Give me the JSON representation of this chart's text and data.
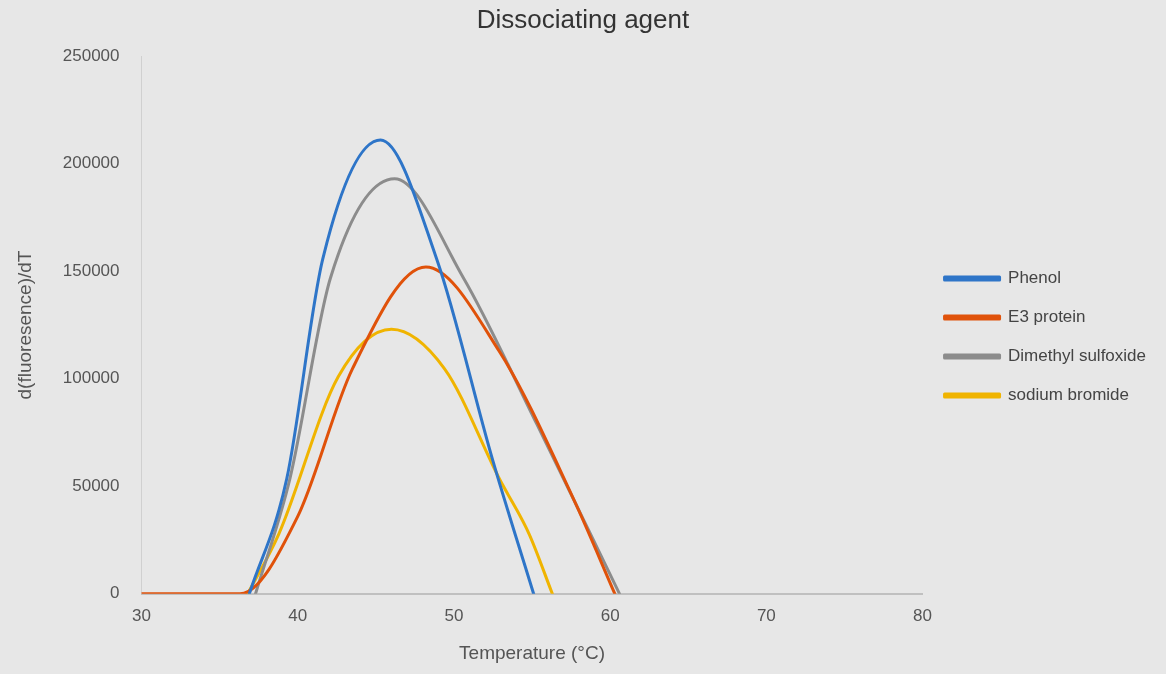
{
  "chart_data": {
    "type": "line",
    "title": "Dissociating agent",
    "xlabel": "Temperature (°C)",
    "ylabel": "d(fluoresence)/dT",
    "xlim": [
      30,
      80
    ],
    "xticks": [
      30,
      40,
      50,
      60,
      70,
      80
    ],
    "ylim": [
      0,
      250000
    ],
    "yticks": [
      0,
      50000,
      100000,
      150000,
      200000,
      250000
    ],
    "grid": false,
    "legend": "right",
    "marker": "none",
    "line_style": "solid",
    "series": [
      {
        "name": "Phenol",
        "color": "#2e75c8",
        "x": [
          36.9,
          39.3,
          41.6,
          45.3,
          48.9,
          52.5,
          55.1
        ],
        "values": [
          0,
          53600,
          155600,
          211000,
          155600,
          61700,
          0
        ]
      },
      {
        "name": "E3 protein",
        "color": "#e0520a",
        "x": [
          30,
          36.3,
          40.0,
          43.5,
          48.2,
          52.9,
          57.6,
          60.3
        ],
        "values": [
          0,
          0,
          36000,
          104600,
          152000,
          112800,
          45000,
          0
        ]
      },
      {
        "name": "Dimethyl sulfoxide",
        "color": "#8c8c8c",
        "x": [
          37.3,
          39.5,
          42.1,
          46.2,
          50.6,
          55.3,
          60.6
        ],
        "values": [
          0,
          53600,
          147000,
          193000,
          147000,
          79000,
          0
        ]
      },
      {
        "name": "sodium bromide",
        "color": "#f0b400",
        "x": [
          36.8,
          38.8,
          42.6,
          46.0,
          49.4,
          52.9,
          54.8,
          56.3
        ],
        "values": [
          0,
          28000,
          101000,
          123000,
          104600,
          53600,
          28000,
          0
        ]
      }
    ]
  }
}
